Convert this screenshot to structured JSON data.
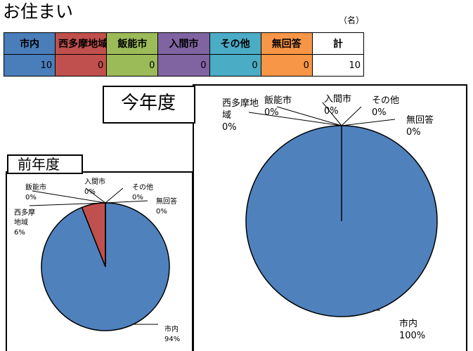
{
  "page_title": "お住まい",
  "unit_note": "（名）",
  "table": {
    "headers": [
      "市内",
      "西多摩地域",
      "飯能市",
      "入間市",
      "その他",
      "無回答",
      "計"
    ],
    "values": [
      "10",
      "0",
      "0",
      "0",
      "0",
      "0",
      "10"
    ],
    "header_colors": [
      "#4a7ebb",
      "#c0504d",
      "#9bbb59",
      "#8064a2",
      "#4bacc6",
      "#f79646",
      "#ffffff"
    ]
  },
  "chart_data": [
    {
      "type": "pie",
      "title": "今年度",
      "categories": [
        "市内",
        "西多摩地域",
        "飯能市",
        "入間市",
        "その他",
        "無回答"
      ],
      "values": [
        100,
        0,
        0,
        0,
        0,
        0
      ],
      "labels": [
        "市内\n100%",
        "西多摩地\n域\n0%",
        "飯能市\n0%",
        "入間市\n0%",
        "その他\n0%",
        "無回答\n0%"
      ],
      "colors": [
        "#4f81bd",
        "#c0504d",
        "#9bbb59",
        "#8064a2",
        "#4bacc6",
        "#f79646"
      ]
    },
    {
      "type": "pie",
      "title": "前年度",
      "categories": [
        "市内",
        "西多摩地域",
        "飯能市",
        "入間市",
        "その他",
        "無回答"
      ],
      "values": [
        94,
        6,
        0,
        0,
        0,
        0
      ],
      "labels": [
        "市内\n94%",
        "西多摩\n地域\n6%",
        "飯能市\n0%",
        "入間市\n0%",
        "その他\n0%",
        "無回答\n0%"
      ],
      "colors": [
        "#4f81bd",
        "#c0504d",
        "#9bbb59",
        "#8064a2",
        "#4bacc6",
        "#f79646"
      ]
    }
  ]
}
